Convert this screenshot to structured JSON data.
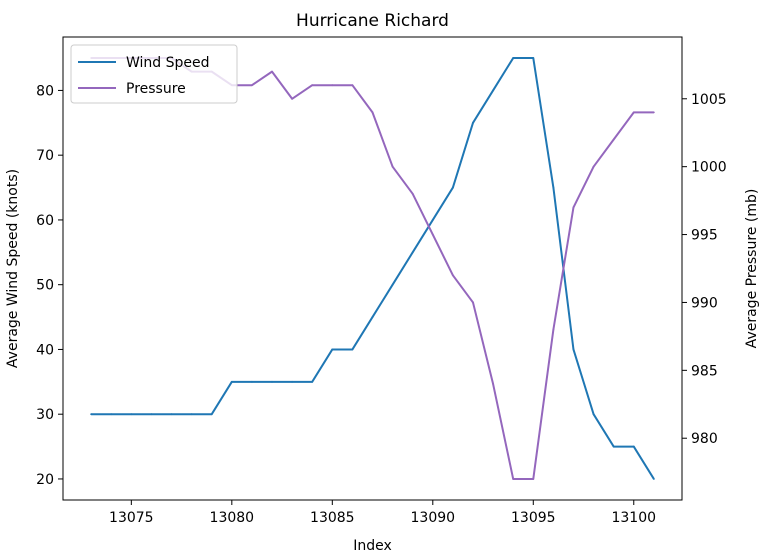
{
  "chart_data": {
    "type": "line",
    "title": "Hurricane Richard",
    "xlabel": "Index",
    "ylabel_left": "Average Wind Speed (knots)",
    "ylabel_right": "Average Pressure (mb)",
    "xlim": [
      13071.6,
      13102.4
    ],
    "ylim_left": [
      16.75,
      88.25
    ],
    "ylim_right": [
      975.45,
      1009.55
    ],
    "x_ticks": [
      13075,
      13080,
      13085,
      13090,
      13095,
      13100
    ],
    "y_ticks_left": [
      20,
      30,
      40,
      50,
      60,
      70,
      80
    ],
    "y_ticks_right": [
      980,
      985,
      990,
      995,
      1000,
      1005
    ],
    "grid": false,
    "legend": "top-left",
    "x": [
      13073,
      13074,
      13075,
      13076,
      13077,
      13078,
      13079,
      13080,
      13081,
      13082,
      13083,
      13084,
      13085,
      13086,
      13087,
      13088,
      13089,
      13090,
      13091,
      13092,
      13093,
      13094,
      13095,
      13096,
      13097,
      13098,
      13099,
      13100,
      13101
    ],
    "series": [
      {
        "name": "Wind Speed",
        "axis": "left",
        "color": "#1f77b4",
        "values": [
          30,
          30,
          30,
          30,
          30,
          30,
          30,
          35,
          35,
          35,
          35,
          35,
          40,
          40,
          45,
          50,
          55,
          60,
          65,
          75,
          80,
          85,
          85,
          65,
          40,
          30,
          25,
          25,
          20
        ]
      },
      {
        "name": "Pressure",
        "axis": "right",
        "color": "#9467bd",
        "values": [
          1008,
          1008,
          1008,
          1008,
          1008,
          1007,
          1007,
          1006,
          1006,
          1007,
          1005,
          1006,
          1006,
          1006,
          1004,
          1000,
          998,
          995,
          992,
          990,
          984,
          977,
          977,
          988,
          997,
          1000,
          1002,
          1004,
          1004
        ]
      }
    ]
  }
}
